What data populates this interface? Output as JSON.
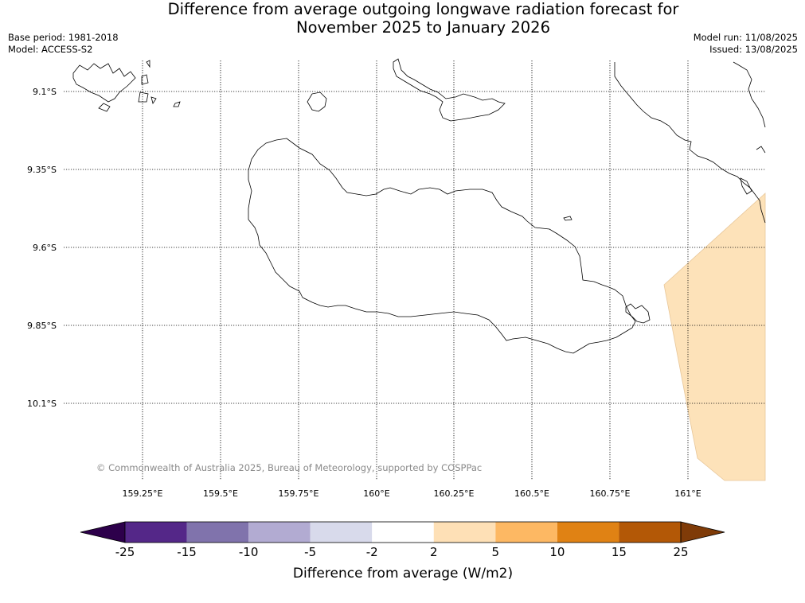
{
  "title": {
    "line1": "Difference from average outgoing longwave radiation forecast for",
    "line2": "November 2025 to January 2026"
  },
  "meta_left": {
    "base_period": "Base period: 1981-2018",
    "model": "Model: ACCESS-S2"
  },
  "meta_right": {
    "model_run": "Model run: 11/08/2025",
    "issued": "Issued: 13/08/2025"
  },
  "map": {
    "lat_labels": [
      "9.1°S",
      "9.35°S",
      "9.6°S",
      "9.85°S",
      "10.1°S"
    ],
    "lon_labels": [
      "159.25°E",
      "159.5°E",
      "159.75°E",
      "160°E",
      "160.25°E",
      "160.5°E",
      "160.75°E",
      "161°E"
    ],
    "copyright": "© Commonwealth of Australia 2025, Bureau of Meteorology, supported by COSPPac",
    "anomaly_fill_color": "#fde2b9",
    "coastline_color": "#000000"
  },
  "colorbar": {
    "title": "Difference from average (W/m2)",
    "tick_labels": [
      "-25",
      "-15",
      "-10",
      "-5",
      "-2",
      "2",
      "5",
      "10",
      "15",
      "25"
    ],
    "colors": [
      "#2d004b",
      "#542788",
      "#8073ac",
      "#b2abd2",
      "#d8daeb",
      "#ffffff",
      "#fee0b6",
      "#fdb863",
      "#e08214",
      "#b35806",
      "#7f3b08"
    ]
  }
}
